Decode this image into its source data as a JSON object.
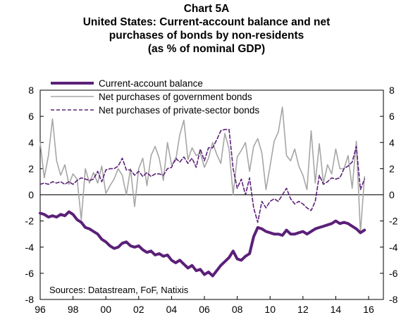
{
  "chart_data": {
    "type": "line",
    "title": "Chart 5A",
    "subtitle": [
      "United States: Current-account balance and net",
      "purchases of bonds by non-residents",
      "(as % of nominal GDP)"
    ],
    "xlabel": "",
    "ylabel": "",
    "xlim": [
      1996,
      2016.9
    ],
    "ylim": [
      -8,
      8
    ],
    "x_tick_labels": [
      "96",
      "98",
      "00",
      "02",
      "04",
      "06",
      "08",
      "10",
      "12",
      "14",
      "16"
    ],
    "x_tick_values": [
      1996,
      1998,
      2000,
      2002,
      2004,
      2006,
      2008,
      2010,
      2012,
      2014,
      2016
    ],
    "y_ticks": [
      -8,
      -6,
      -4,
      -2,
      0,
      2,
      4,
      6,
      8
    ],
    "y_tick_labels": [
      "-8",
      "-6",
      "-4",
      "-2",
      "0",
      "2",
      "4",
      "6",
      "8"
    ],
    "grid": false,
    "legend_placement": "top-left",
    "source": "Sources: Datastream, FoF, Natixis",
    "colors": {
      "title": "#5b2078",
      "current_account": "#5b2078",
      "gov_bonds": "#a6a6a6",
      "private_bonds": "#5b2078"
    },
    "series": [
      {
        "name": "Current-account balance",
        "style": "thick-solid",
        "x": [
          1996.0,
          1996.25,
          1996.5,
          1996.75,
          1997.0,
          1997.25,
          1997.5,
          1997.75,
          1998.0,
          1998.25,
          1998.5,
          1998.75,
          1999.0,
          1999.25,
          1999.5,
          1999.75,
          2000.0,
          2000.25,
          2000.5,
          2000.75,
          2001.0,
          2001.25,
          2001.5,
          2001.75,
          2002.0,
          2002.25,
          2002.5,
          2002.75,
          2003.0,
          2003.25,
          2003.5,
          2003.75,
          2004.0,
          2004.25,
          2004.5,
          2004.75,
          2005.0,
          2005.25,
          2005.5,
          2005.75,
          2006.0,
          2006.25,
          2006.5,
          2006.75,
          2007.0,
          2007.25,
          2007.5,
          2007.75,
          2008.0,
          2008.25,
          2008.5,
          2008.75,
          2009.0,
          2009.25,
          2009.5,
          2009.75,
          2010.0,
          2010.25,
          2010.5,
          2010.75,
          2011.0,
          2011.25,
          2011.5,
          2011.75,
          2012.0,
          2012.25,
          2012.5,
          2012.75,
          2013.0,
          2013.25,
          2013.5,
          2013.75,
          2014.0,
          2014.25,
          2014.5,
          2014.75,
          2015.0,
          2015.25,
          2015.5,
          2015.75
        ],
        "y": [
          -1.4,
          -1.5,
          -1.7,
          -1.6,
          -1.7,
          -1.5,
          -1.6,
          -1.3,
          -1.5,
          -1.9,
          -2.1,
          -2.5,
          -2.6,
          -2.8,
          -3.0,
          -3.4,
          -3.6,
          -3.9,
          -4.1,
          -4.0,
          -3.7,
          -3.6,
          -3.9,
          -4.0,
          -3.9,
          -4.2,
          -4.4,
          -4.3,
          -4.6,
          -4.5,
          -4.7,
          -4.6,
          -5.0,
          -5.2,
          -5.0,
          -5.3,
          -5.6,
          -5.4,
          -5.8,
          -5.7,
          -6.1,
          -5.9,
          -6.2,
          -5.8,
          -5.4,
          -5.1,
          -4.8,
          -4.3,
          -4.9,
          -5.0,
          -4.7,
          -4.5,
          -3.2,
          -2.5,
          -2.6,
          -2.8,
          -2.9,
          -3.0,
          -3.0,
          -3.1,
          -2.7,
          -3.0,
          -3.0,
          -2.9,
          -2.8,
          -3.0,
          -2.8,
          -2.6,
          -2.5,
          -2.4,
          -2.3,
          -2.2,
          -2.0,
          -2.2,
          -2.1,
          -2.2,
          -2.4,
          -2.6,
          -2.9,
          -2.7
        ]
      },
      {
        "name": "Net purchases of government bonds",
        "style": "solid",
        "x": [
          1996.0,
          1996.25,
          1996.5,
          1996.75,
          1997.0,
          1997.25,
          1997.5,
          1997.75,
          1998.0,
          1998.25,
          1998.5,
          1998.75,
          1999.0,
          1999.25,
          1999.5,
          1999.75,
          2000.0,
          2000.25,
          2000.5,
          2000.75,
          2001.0,
          2001.25,
          2001.5,
          2001.75,
          2002.0,
          2002.25,
          2002.5,
          2002.75,
          2003.0,
          2003.25,
          2003.5,
          2003.75,
          2004.0,
          2004.25,
          2004.5,
          2004.75,
          2005.0,
          2005.25,
          2005.5,
          2005.75,
          2006.0,
          2006.25,
          2006.5,
          2006.75,
          2007.0,
          2007.25,
          2007.5,
          2007.75,
          2008.0,
          2008.25,
          2008.5,
          2008.75,
          2009.0,
          2009.25,
          2009.5,
          2009.75,
          2010.0,
          2010.25,
          2010.5,
          2010.75,
          2011.0,
          2011.25,
          2011.5,
          2011.75,
          2012.0,
          2012.25,
          2012.5,
          2012.75,
          2013.0,
          2013.25,
          2013.5,
          2013.75,
          2014.0,
          2014.25,
          2014.5,
          2014.75,
          2015.0,
          2015.25,
          2015.5,
          2015.75
        ],
        "y": [
          4.0,
          1.3,
          3.0,
          5.8,
          2.6,
          1.5,
          2.3,
          0.8,
          1.6,
          1.2,
          -1.9,
          2.0,
          0.9,
          1.7,
          0.9,
          2.2,
          0.1,
          0.7,
          1.2,
          2.0,
          1.5,
          0.0,
          2.0,
          -0.9,
          2.0,
          2.8,
          0.7,
          3.0,
          3.7,
          2.8,
          1.1,
          4.0,
          2.3,
          2.6,
          4.6,
          5.7,
          2.7,
          3.6,
          3.0,
          3.2,
          2.1,
          2.8,
          4.0,
          3.1,
          2.4,
          4.7,
          3.5,
          0.0,
          2.9,
          3.4,
          4.0,
          1.8,
          3.7,
          4.3,
          3.2,
          0.4,
          2.2,
          4.1,
          4.8,
          6.7,
          3.0,
          2.6,
          3.5,
          2.2,
          1.5,
          0.4,
          4.9,
          0.9,
          3.9,
          0.9,
          2.3,
          1.6,
          3.5,
          2.0,
          2.0,
          3.0,
          0.5,
          4.1,
          -2.9,
          1.4
        ]
      },
      {
        "name": "Net purchases of private-sector bonds",
        "style": "dashed",
        "x": [
          1996.0,
          1996.25,
          1996.5,
          1996.75,
          1997.0,
          1997.25,
          1997.5,
          1997.75,
          1998.0,
          1998.25,
          1998.5,
          1998.75,
          1999.0,
          1999.25,
          1999.5,
          1999.75,
          2000.0,
          2000.25,
          2000.5,
          2000.75,
          2001.0,
          2001.25,
          2001.5,
          2001.75,
          2002.0,
          2002.25,
          2002.5,
          2002.75,
          2003.0,
          2003.25,
          2003.5,
          2003.75,
          2004.0,
          2004.25,
          2004.5,
          2004.75,
          2005.0,
          2005.25,
          2005.5,
          2005.75,
          2006.0,
          2006.25,
          2006.5,
          2006.75,
          2007.0,
          2007.25,
          2007.5,
          2007.75,
          2008.0,
          2008.25,
          2008.5,
          2008.75,
          2009.0,
          2009.25,
          2009.5,
          2009.75,
          2010.0,
          2010.25,
          2010.5,
          2010.75,
          2011.0,
          2011.25,
          2011.5,
          2011.75,
          2012.0,
          2012.25,
          2012.5,
          2012.75,
          2013.0,
          2013.25,
          2013.5,
          2013.75,
          2014.0,
          2014.25,
          2014.5,
          2014.75,
          2015.0,
          2015.25,
          2015.5,
          2015.75
        ],
        "y": [
          0.8,
          0.9,
          0.8,
          1.0,
          0.9,
          1.0,
          0.8,
          1.0,
          0.8,
          1.1,
          1.3,
          1.2,
          1.1,
          1.2,
          1.8,
          1.0,
          1.9,
          2.0,
          2.0,
          2.2,
          2.8,
          1.9,
          1.9,
          1.5,
          1.8,
          1.4,
          1.7,
          1.4,
          1.6,
          1.6,
          1.5,
          2.0,
          2.1,
          2.8,
          2.5,
          2.9,
          2.4,
          2.8,
          2.1,
          3.5,
          2.6,
          3.6,
          3.6,
          4.2,
          4.9,
          5.0,
          5.0,
          2.0,
          0.5,
          1.2,
          0.0,
          1.3,
          -1.0,
          -2.1,
          -0.5,
          -1.0,
          -0.5,
          -0.3,
          -0.5,
          0.0,
          0.5,
          -0.3,
          -0.7,
          -0.5,
          -0.7,
          -1.0,
          -1.2,
          -0.5,
          1.5,
          0.8,
          1.0,
          1.3,
          1.2,
          1.3,
          2.0,
          2.2,
          2.5,
          3.7,
          0.4,
          1.2
        ]
      }
    ]
  }
}
